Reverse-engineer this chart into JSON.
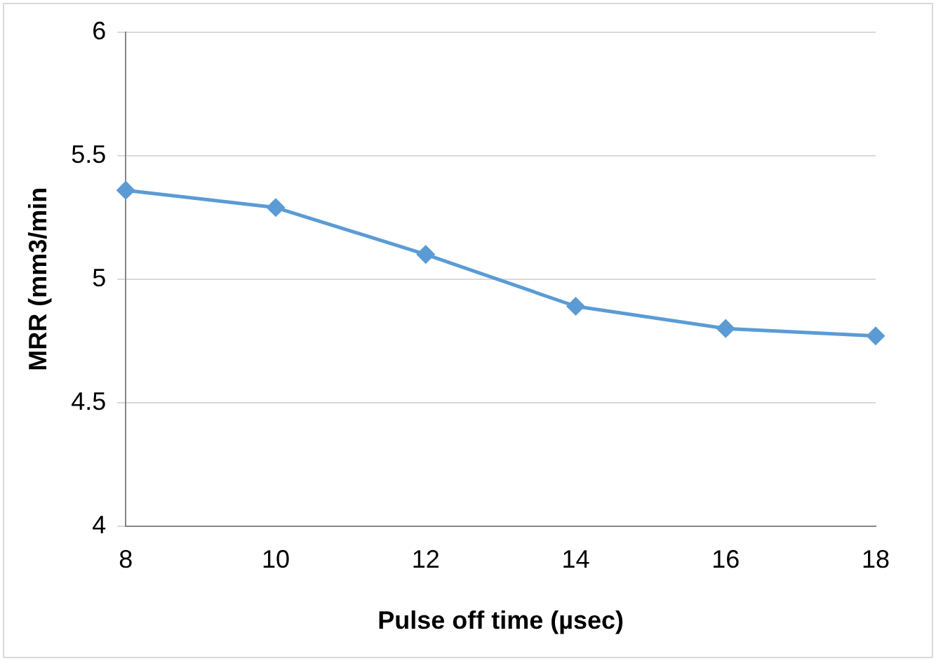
{
  "chart_data": {
    "type": "line",
    "xlabel": "Pulse off time (µsec)",
    "ylabel": "MRR (mm3/min",
    "categories": [
      "8",
      "10",
      "12",
      "14",
      "16",
      "18"
    ],
    "series": [
      {
        "color": "#5b9bd5",
        "values": [
          5.36,
          5.29,
          5.1,
          4.89,
          4.8,
          4.77
        ]
      }
    ],
    "ylim": [
      4,
      6
    ],
    "yticks": [
      4,
      4.5,
      5,
      5.5,
      6
    ],
    "grid": "y",
    "legend": false,
    "marker": "diamond",
    "line_style": "solid"
  }
}
